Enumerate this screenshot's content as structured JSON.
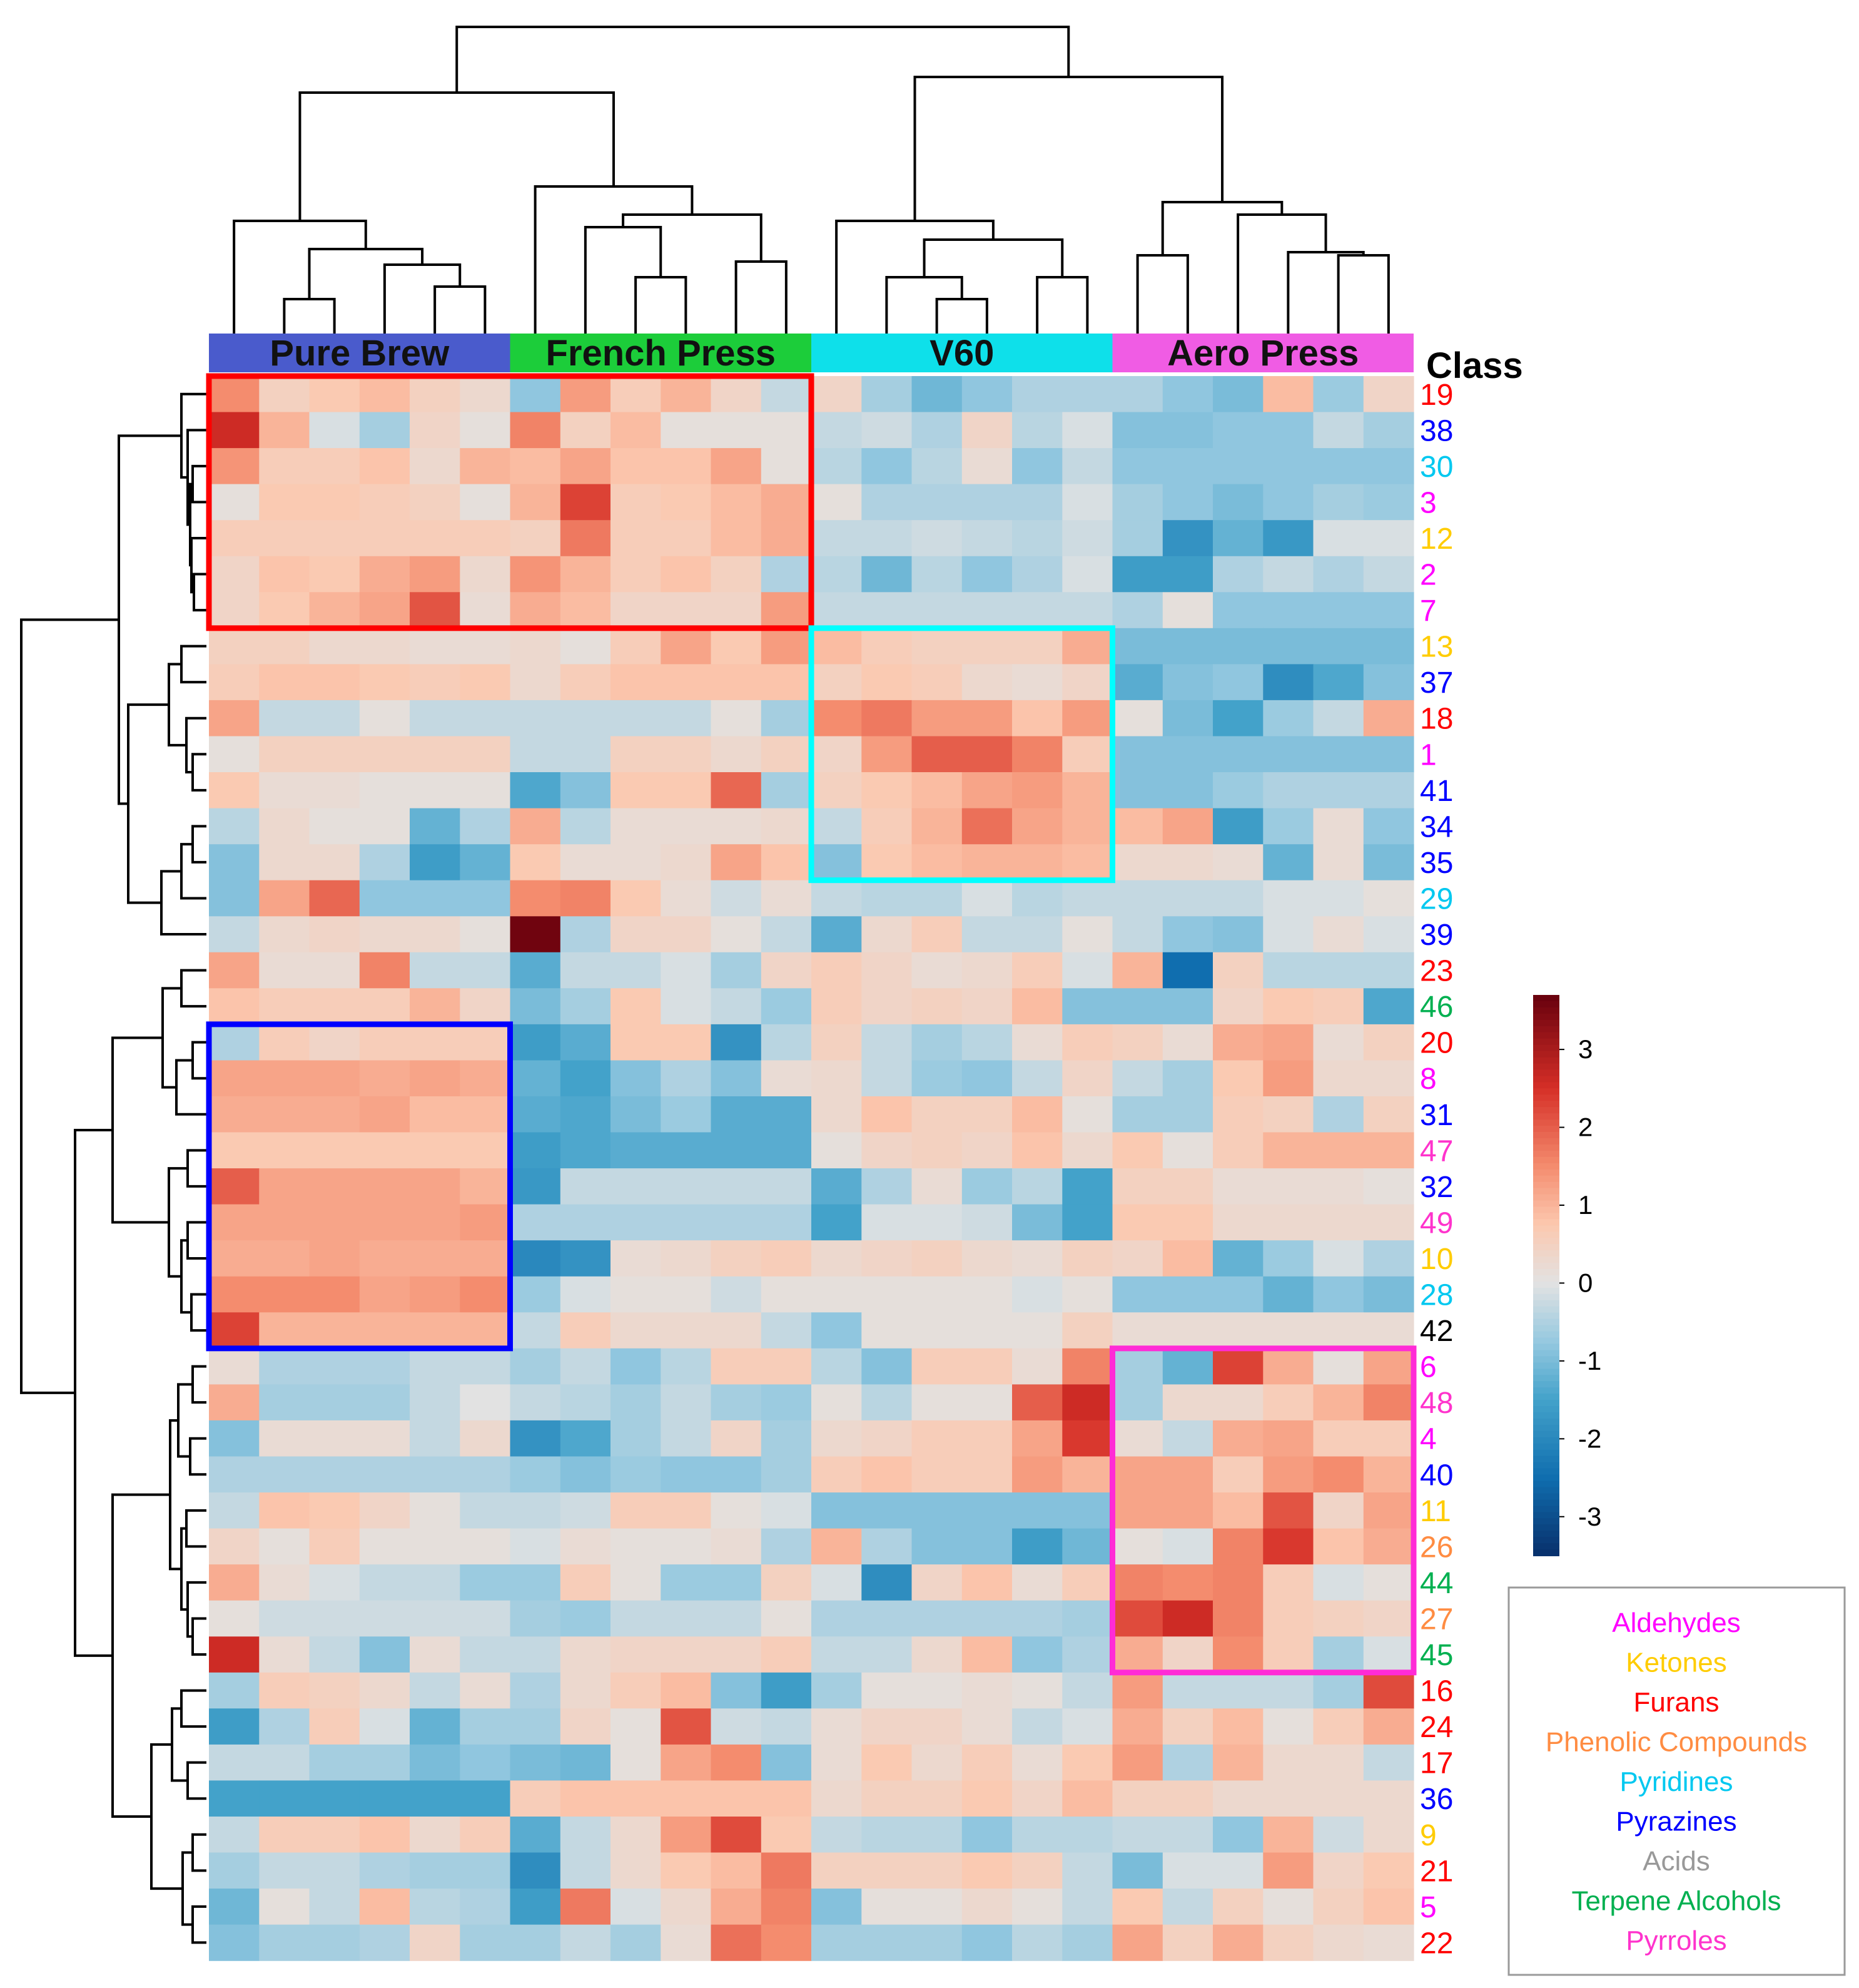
{
  "chart_data": {
    "type": "heatmap",
    "title": "",
    "annotation_header": "Class",
    "column_groups": [
      {
        "name": "Pure Brew",
        "color": "#4a5bcc",
        "n": 6
      },
      {
        "name": "French Press",
        "color": "#1ccd3a",
        "n": 6
      },
      {
        "name": "V60",
        "color": "#0ee0ea",
        "n": 6
      },
      {
        "name": "Aero Press",
        "color": "#f05ce4",
        "n": 6
      }
    ],
    "rows": [
      {
        "label": "19",
        "cls": "Furans"
      },
      {
        "label": "38",
        "cls": "Pyrazines"
      },
      {
        "label": "30",
        "cls": "Pyridines"
      },
      {
        "label": "3",
        "cls": "Aldehydes"
      },
      {
        "label": "12",
        "cls": "Ketones"
      },
      {
        "label": "2",
        "cls": "Aldehydes"
      },
      {
        "label": "7",
        "cls": "Aldehydes"
      },
      {
        "label": "13",
        "cls": "Ketones"
      },
      {
        "label": "37",
        "cls": "Pyrazines"
      },
      {
        "label": "18",
        "cls": "Furans"
      },
      {
        "label": "1",
        "cls": "Aldehydes"
      },
      {
        "label": "41",
        "cls": "Pyrazines"
      },
      {
        "label": "34",
        "cls": "Pyrazines"
      },
      {
        "label": "35",
        "cls": "Pyrazines"
      },
      {
        "label": "29",
        "cls": "Pyridines"
      },
      {
        "label": "39",
        "cls": "Pyrazines"
      },
      {
        "label": "23",
        "cls": "Furans"
      },
      {
        "label": "46",
        "cls": "Terpene Alcohols"
      },
      {
        "label": "20",
        "cls": "Furans"
      },
      {
        "label": "8",
        "cls": "Aldehydes"
      },
      {
        "label": "31",
        "cls": "Pyrazines"
      },
      {
        "label": "47",
        "cls": "Pyrroles"
      },
      {
        "label": "32",
        "cls": "Pyrazines"
      },
      {
        "label": "49",
        "cls": "Pyrroles"
      },
      {
        "label": "10",
        "cls": "Ketones"
      },
      {
        "label": "28",
        "cls": "Pyridines"
      },
      {
        "label": "42",
        "cls": "Acids"
      },
      {
        "label": "6",
        "cls": "Aldehydes"
      },
      {
        "label": "48",
        "cls": "Pyrroles"
      },
      {
        "label": "4",
        "cls": "Aldehydes"
      },
      {
        "label": "40",
        "cls": "Pyrazines"
      },
      {
        "label": "11",
        "cls": "Ketones"
      },
      {
        "label": "26",
        "cls": "Phenolic Compounds"
      },
      {
        "label": "44",
        "cls": "Terpene Alcohols"
      },
      {
        "label": "27",
        "cls": "Phenolic Compounds"
      },
      {
        "label": "45",
        "cls": "Terpene Alcohols"
      },
      {
        "label": "16",
        "cls": "Furans"
      },
      {
        "label": "24",
        "cls": "Furans"
      },
      {
        "label": "17",
        "cls": "Furans"
      },
      {
        "label": "36",
        "cls": "Pyrazines"
      },
      {
        "label": "9",
        "cls": "Ketones"
      },
      {
        "label": "21",
        "cls": "Furans"
      },
      {
        "label": "5",
        "cls": "Aldehydes"
      },
      {
        "label": "22",
        "cls": "Furans"
      }
    ],
    "values": [
      [
        1.5,
        0.5,
        0.7,
        0.9,
        0.5,
        0.3,
        -0.8,
        1.3,
        0.6,
        1.0,
        0.4,
        -0.3,
        0.4,
        -0.6,
        -1.1,
        -0.8,
        -0.5,
        -0.5,
        -0.5,
        -0.8,
        -1.0,
        0.9,
        -0.7,
        0.4
      ],
      [
        2.6,
        1.0,
        -0.1,
        -0.6,
        0.4,
        0.1,
        1.6,
        0.5,
        0.9,
        0.1,
        0.1,
        0.1,
        -0.3,
        -0.2,
        -0.5,
        0.4,
        -0.4,
        -0.1,
        -0.9,
        -0.9,
        -0.8,
        -0.8,
        -0.3,
        -0.6
      ],
      [
        1.4,
        0.6,
        0.6,
        0.8,
        0.3,
        1.0,
        0.9,
        1.2,
        0.8,
        0.8,
        1.2,
        0.1,
        -0.4,
        -0.8,
        -0.4,
        0.2,
        -0.8,
        -0.3,
        -0.8,
        -0.8,
        -0.8,
        -0.8,
        -0.8,
        -0.8
      ],
      [
        0.1,
        0.7,
        0.7,
        0.6,
        0.5,
        0.1,
        1.0,
        2.3,
        0.6,
        0.7,
        0.9,
        1.1,
        0.1,
        -0.5,
        -0.5,
        -0.5,
        -0.5,
        -0.1,
        -0.6,
        -0.8,
        -1.0,
        -0.8,
        -0.6,
        -0.7
      ],
      [
        0.6,
        0.6,
        0.6,
        0.6,
        0.6,
        0.6,
        0.5,
        1.7,
        0.6,
        0.6,
        0.9,
        1.1,
        -0.3,
        -0.3,
        -0.2,
        -0.3,
        -0.4,
        -0.2,
        -0.6,
        -1.8,
        -1.2,
        -1.7,
        -0.1,
        -0.1
      ],
      [
        0.4,
        0.8,
        0.7,
        1.1,
        1.3,
        0.3,
        1.4,
        1.0,
        0.6,
        0.8,
        0.5,
        -0.5,
        -0.4,
        -1.1,
        -0.4,
        -0.8,
        -0.5,
        -0.1,
        -1.6,
        -1.6,
        -0.5,
        -0.3,
        -0.5,
        -0.3
      ],
      [
        0.4,
        0.7,
        1.0,
        1.2,
        2.1,
        0.2,
        1.1,
        0.9,
        0.4,
        0.4,
        0.4,
        1.3,
        -0.3,
        -0.3,
        -0.3,
        -0.3,
        -0.3,
        -0.3,
        -0.5,
        0.1,
        -0.8,
        -0.8,
        -0.8,
        -0.8
      ],
      [
        0.5,
        0.5,
        0.3,
        0.3,
        0.2,
        0.2,
        0.3,
        0.1,
        0.6,
        1.2,
        0.7,
        1.3,
        0.9,
        0.6,
        0.5,
        0.5,
        0.5,
        1.1,
        -1.0,
        -1.0,
        -1.0,
        -1.0,
        -1.0,
        -1.0
      ],
      [
        0.6,
        0.8,
        0.8,
        0.7,
        0.6,
        0.7,
        0.3,
        0.6,
        0.8,
        0.8,
        0.8,
        0.8,
        0.5,
        0.7,
        0.6,
        0.3,
        0.2,
        0.4,
        -1.3,
        -0.9,
        -0.8,
        -1.9,
        -1.4,
        -0.9
      ],
      [
        1.2,
        -0.3,
        -0.3,
        0.1,
        -0.3,
        -0.3,
        -0.3,
        -0.3,
        -0.3,
        -0.3,
        0.1,
        -0.6,
        1.5,
        1.7,
        1.3,
        1.3,
        0.8,
        1.3,
        0.1,
        -1.0,
        -1.5,
        -0.7,
        -0.3,
        1.1
      ],
      [
        0.1,
        0.5,
        0.5,
        0.5,
        0.5,
        0.5,
        -0.3,
        -0.3,
        0.5,
        0.5,
        0.3,
        0.5,
        0.4,
        1.3,
        2.0,
        2.0,
        1.6,
        0.6,
        -0.9,
        -0.9,
        -0.9,
        -0.9,
        -0.9,
        -0.9
      ],
      [
        0.7,
        0.2,
        0.2,
        0.1,
        0.1,
        0.1,
        -1.4,
        -0.9,
        0.7,
        0.7,
        1.9,
        -0.6,
        0.5,
        0.7,
        0.9,
        1.2,
        1.3,
        1.0,
        -0.9,
        -0.9,
        -0.7,
        -0.5,
        -0.5,
        -0.5
      ],
      [
        -0.4,
        0.3,
        0.1,
        0.1,
        -1.2,
        -0.5,
        1.1,
        -0.4,
        0.2,
        0.2,
        0.2,
        0.3,
        -0.3,
        0.6,
        1.0,
        1.8,
        1.2,
        1.0,
        0.9,
        1.2,
        -1.6,
        -0.7,
        0.2,
        -0.8
      ],
      [
        -0.9,
        0.3,
        0.3,
        -0.5,
        -1.6,
        -1.2,
        0.7,
        0.2,
        0.2,
        0.3,
        1.2,
        0.8,
        -0.9,
        0.7,
        0.9,
        1.0,
        1.0,
        0.9,
        0.3,
        0.3,
        0.2,
        -1.2,
        0.2,
        -1.0
      ],
      [
        -0.9,
        1.2,
        1.9,
        -0.8,
        -0.8,
        -0.8,
        1.5,
        1.6,
        0.7,
        0.2,
        -0.2,
        0.2,
        -0.3,
        -0.4,
        -0.4,
        -0.1,
        -0.4,
        -0.3,
        -0.3,
        -0.3,
        -0.3,
        -0.1,
        -0.1,
        0.1
      ],
      [
        -0.3,
        0.3,
        0.4,
        0.3,
        0.3,
        0.1,
        3.6,
        -0.5,
        0.4,
        0.4,
        0.1,
        -0.3,
        -1.3,
        0.3,
        0.6,
        -0.3,
        -0.3,
        0.1,
        -0.3,
        -0.8,
        -0.9,
        -0.1,
        0.2,
        -0.1
      ],
      [
        1.2,
        0.2,
        0.2,
        1.6,
        -0.3,
        -0.3,
        -1.3,
        -0.3,
        -0.3,
        -0.1,
        -0.6,
        0.4,
        0.6,
        0.4,
        0.2,
        0.3,
        0.6,
        -0.1,
        1.0,
        -2.5,
        0.5,
        -0.4,
        -0.4,
        -0.4
      ],
      [
        0.8,
        0.6,
        0.6,
        0.6,
        1.0,
        0.4,
        -1.0,
        -0.6,
        0.7,
        -0.1,
        -0.3,
        -0.7,
        0.6,
        0.4,
        0.5,
        0.4,
        0.9,
        -0.9,
        -0.9,
        -0.9,
        0.4,
        0.7,
        0.6,
        -1.4
      ],
      [
        -0.5,
        0.6,
        0.4,
        0.6,
        0.6,
        0.6,
        -1.6,
        -1.3,
        0.7,
        0.7,
        -1.8,
        -0.4,
        0.5,
        -0.3,
        -0.6,
        -0.4,
        0.2,
        0.6,
        0.5,
        0.2,
        1.1,
        1.2,
        0.2,
        0.5
      ],
      [
        1.2,
        1.2,
        1.2,
        1.1,
        1.2,
        1.1,
        -1.2,
        -1.5,
        -0.9,
        -0.5,
        -0.9,
        0.2,
        0.3,
        -0.3,
        -0.7,
        -0.8,
        -0.3,
        0.4,
        -0.3,
        -0.6,
        0.7,
        1.3,
        0.3,
        0.3
      ],
      [
        1.1,
        1.1,
        1.1,
        1.2,
        0.9,
        0.9,
        -1.3,
        -1.4,
        -1.0,
        -0.7,
        -1.3,
        -1.3,
        0.3,
        0.8,
        0.5,
        0.5,
        0.9,
        0.1,
        -0.6,
        -0.6,
        0.6,
        0.5,
        -0.5,
        0.5
      ],
      [
        0.7,
        0.7,
        0.7,
        0.7,
        0.7,
        0.7,
        -1.6,
        -1.4,
        -1.3,
        -1.3,
        -1.3,
        -1.3,
        0.1,
        0.4,
        0.5,
        0.4,
        0.8,
        0.3,
        0.7,
        0.1,
        0.6,
        1.0,
        1.0,
        1.0
      ],
      [
        2.0,
        1.2,
        1.2,
        1.2,
        1.2,
        1.0,
        -1.7,
        -0.3,
        -0.3,
        -0.3,
        -0.3,
        -0.3,
        -1.3,
        -0.5,
        0.2,
        -0.7,
        -0.4,
        -1.5,
        0.5,
        0.5,
        0.2,
        0.2,
        0.2,
        0.1
      ],
      [
        1.2,
        1.2,
        1.2,
        1.2,
        1.2,
        1.3,
        -0.5,
        -0.5,
        -0.5,
        -0.5,
        -0.5,
        -0.5,
        -1.5,
        -0.1,
        -0.1,
        -0.2,
        -1.0,
        -1.5,
        0.7,
        0.7,
        0.3,
        0.3,
        0.3,
        0.3
      ],
      [
        1.1,
        1.1,
        1.2,
        1.1,
        1.1,
        1.1,
        -2.0,
        -1.8,
        0.2,
        0.3,
        0.5,
        0.6,
        0.3,
        0.4,
        0.5,
        0.3,
        0.2,
        0.5,
        0.4,
        0.9,
        -1.2,
        -0.7,
        -0.1,
        -0.5
      ],
      [
        1.5,
        1.5,
        1.5,
        1.2,
        1.3,
        1.5,
        -0.7,
        -0.1,
        0.1,
        0.1,
        -0.2,
        0.1,
        0.1,
        0.1,
        0.1,
        0.1,
        -0.1,
        0.1,
        -0.8,
        -0.8,
        -0.8,
        -1.2,
        -0.8,
        -1.0
      ],
      [
        2.3,
        1.0,
        1.0,
        1.0,
        1.0,
        1.0,
        -0.3,
        0.6,
        0.3,
        0.3,
        0.3,
        -0.3,
        -0.8,
        0.1,
        0.1,
        0.1,
        0.1,
        0.5,
        0.2,
        0.2,
        0.2,
        0.2,
        0.2,
        0.2
      ],
      [
        0.2,
        -0.5,
        -0.5,
        -0.5,
        -0.3,
        -0.3,
        -0.6,
        -0.3,
        -0.8,
        -0.4,
        0.6,
        0.6,
        -0.4,
        -0.9,
        0.6,
        0.6,
        0.2,
        1.6,
        -0.6,
        -1.2,
        2.3,
        1.1,
        0.1,
        1.2
      ],
      [
        1.1,
        -0.6,
        -0.6,
        -0.6,
        -0.3,
        0.0,
        -0.3,
        -0.4,
        -0.6,
        -0.3,
        -0.6,
        -0.7,
        0.1,
        -0.4,
        0.1,
        0.1,
        2.0,
        2.6,
        -0.6,
        0.3,
        0.3,
        0.6,
        1.0,
        1.6
      ],
      [
        -0.9,
        0.2,
        0.2,
        0.2,
        -0.3,
        0.3,
        -1.8,
        -1.4,
        -0.6,
        -0.3,
        0.4,
        -0.6,
        0.3,
        0.4,
        0.6,
        0.6,
        1.2,
        2.4,
        0.2,
        -0.3,
        1.1,
        1.2,
        0.6,
        0.6
      ],
      [
        -0.5,
        -0.5,
        -0.5,
        -0.5,
        -0.5,
        -0.5,
        -0.7,
        -0.9,
        -0.7,
        -0.8,
        -0.8,
        -0.6,
        0.6,
        0.8,
        0.6,
        0.6,
        1.3,
        1.0,
        1.2,
        1.2,
        0.6,
        1.3,
        1.5,
        1.0
      ],
      [
        -0.3,
        0.8,
        0.7,
        0.4,
        0.1,
        -0.3,
        -0.3,
        -0.2,
        0.6,
        0.6,
        0.1,
        -0.1,
        -0.9,
        -0.9,
        -0.9,
        -0.9,
        -0.9,
        -0.9,
        1.2,
        1.2,
        0.9,
        2.1,
        0.4,
        1.2
      ],
      [
        0.4,
        0.1,
        0.6,
        0.1,
        0.1,
        0.1,
        -0.1,
        0.2,
        0.1,
        0.1,
        0.2,
        -0.5,
        1.0,
        -0.5,
        -0.9,
        -0.9,
        -1.6,
        -1.1,
        0.1,
        -0.1,
        1.6,
        2.4,
        0.8,
        1.1
      ],
      [
        1.1,
        0.2,
        -0.1,
        -0.3,
        -0.3,
        -0.7,
        -0.7,
        0.6,
        0.1,
        -0.7,
        -0.7,
        0.5,
        -0.1,
        -1.9,
        0.4,
        0.8,
        0.2,
        0.6,
        1.6,
        1.5,
        1.6,
        0.6,
        -0.1,
        0.1
      ],
      [
        0.1,
        -0.2,
        -0.2,
        -0.2,
        -0.2,
        -0.2,
        -0.6,
        -0.7,
        -0.3,
        -0.3,
        -0.3,
        0.1,
        -0.5,
        -0.5,
        -0.5,
        -0.5,
        -0.5,
        -0.6,
        2.2,
        2.6,
        1.6,
        0.6,
        0.5,
        0.4
      ],
      [
        2.6,
        0.2,
        -0.3,
        -0.9,
        0.2,
        -0.3,
        -0.3,
        0.3,
        0.4,
        0.4,
        0.4,
        0.6,
        -0.3,
        -0.3,
        0.3,
        0.9,
        -0.8,
        -0.5,
        1.1,
        0.4,
        1.5,
        0.6,
        -0.6,
        -0.1
      ],
      [
        -0.6,
        0.6,
        0.5,
        0.3,
        -0.3,
        0.2,
        -0.5,
        0.3,
        0.6,
        0.9,
        -0.9,
        -1.6,
        -0.6,
        0.1,
        0.1,
        0.2,
        0.1,
        -0.3,
        1.3,
        -0.3,
        -0.3,
        -0.3,
        -0.6,
        2.2
      ],
      [
        -1.6,
        -0.5,
        0.6,
        -0.1,
        -1.2,
        -0.6,
        -0.6,
        0.4,
        0.1,
        2.1,
        -0.2,
        -0.3,
        0.2,
        0.4,
        0.4,
        0.2,
        -0.3,
        -0.1,
        1.1,
        0.5,
        0.9,
        0.1,
        0.6,
        1.1
      ],
      [
        -0.3,
        -0.3,
        -0.6,
        -0.6,
        -1.0,
        -0.8,
        -1.0,
        -1.1,
        0.1,
        1.2,
        1.5,
        -0.9,
        0.2,
        0.7,
        0.3,
        0.6,
        0.2,
        0.7,
        1.3,
        -0.5,
        1.0,
        0.3,
        0.3,
        -0.3
      ],
      [
        -1.5,
        -1.5,
        -1.5,
        -1.5,
        -1.5,
        -1.5,
        0.6,
        0.8,
        0.8,
        0.8,
        0.8,
        0.8,
        0.3,
        0.5,
        0.5,
        0.7,
        0.4,
        0.9,
        0.5,
        0.5,
        0.3,
        0.3,
        0.3,
        0.3
      ],
      [
        -0.3,
        0.6,
        0.6,
        0.8,
        0.3,
        0.6,
        -1.3,
        -0.3,
        0.3,
        1.3,
        2.2,
        0.7,
        -0.3,
        -0.4,
        -0.4,
        -0.8,
        -0.4,
        -0.4,
        -0.3,
        -0.3,
        -0.8,
        1.0,
        -0.2,
        0.3
      ],
      [
        -0.6,
        -0.3,
        -0.3,
        -0.5,
        -0.6,
        -0.6,
        -1.9,
        -0.3,
        0.3,
        0.7,
        0.9,
        1.7,
        0.5,
        0.5,
        0.5,
        0.7,
        0.5,
        -0.3,
        -1.0,
        -0.1,
        -0.1,
        1.3,
        0.4,
        0.7
      ],
      [
        -1.1,
        0.1,
        -0.3,
        0.9,
        -0.4,
        -0.5,
        -1.6,
        1.7,
        -0.1,
        0.3,
        1.1,
        1.6,
        -0.9,
        0.1,
        0.1,
        0.3,
        0.1,
        -0.3,
        0.7,
        -0.3,
        0.5,
        0.1,
        0.5,
        0.8
      ],
      [
        -0.9,
        -0.6,
        -0.6,
        -0.5,
        0.4,
        -0.6,
        -0.6,
        -0.3,
        -0.6,
        0.2,
        1.8,
        1.5,
        -0.6,
        -0.6,
        -0.6,
        -0.8,
        -0.4,
        -0.6,
        1.2,
        0.5,
        1.1,
        0.5,
        0.3,
        0.2
      ]
    ],
    "highlight_boxes": [
      {
        "rows": [
          0,
          6
        ],
        "cols": [
          0,
          11
        ],
        "color": "#ff0000"
      },
      {
        "rows": [
          7,
          13
        ],
        "cols": [
          12,
          17
        ],
        "color": "#00ffff"
      },
      {
        "rows": [
          18,
          26
        ],
        "cols": [
          0,
          5
        ],
        "color": "#0000ff"
      },
      {
        "rows": [
          27,
          35
        ],
        "cols": [
          18,
          23
        ],
        "color": "#ff2bd6"
      }
    ],
    "color_scale": {
      "min": -3.5,
      "max": 3.7,
      "ticks": [
        3,
        2,
        1,
        0,
        -1,
        -2,
        -3
      ]
    },
    "legend": {
      "items": [
        {
          "label": "Aldehydes",
          "color": "#ff00ff"
        },
        {
          "label": "Ketones",
          "color": "#ffcc00"
        },
        {
          "label": "Furans",
          "color": "#ff0000"
        },
        {
          "label": "Phenolic Compounds",
          "color": "#ff8c42"
        },
        {
          "label": "Pyridines",
          "color": "#00c8f0"
        },
        {
          "label": "Pyrazines",
          "color": "#0000ff"
        },
        {
          "label": "Acids",
          "color": "#999999"
        },
        {
          "label": "Terpene Alcohols",
          "color": "#00b050"
        },
        {
          "label": "Pyrroles",
          "color": "#ff33cc"
        }
      ]
    }
  }
}
